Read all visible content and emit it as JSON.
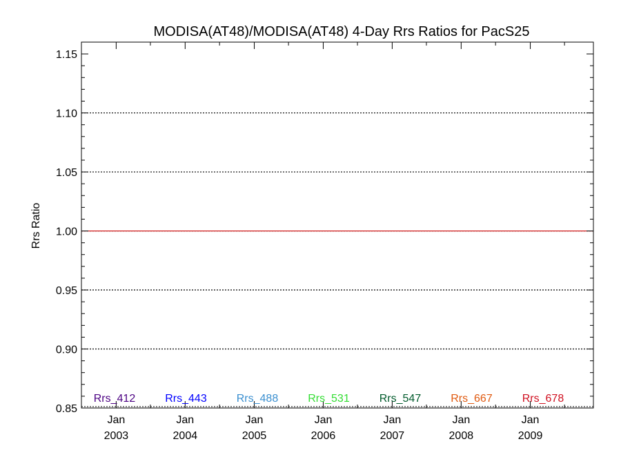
{
  "chart_data": {
    "type": "line",
    "title": "MODISA(AT48)/MODISA(AT48) 4-Day Rrs Ratios for PacS25",
    "xlabel": "",
    "ylabel": "Rrs Ratio",
    "xlim": [
      "2002-07-01",
      "2009-12-01"
    ],
    "ylim": [
      0.85,
      1.16
    ],
    "y_ticks": [
      "0.85",
      "0.90",
      "0.95",
      "1.00",
      "1.05",
      "1.10",
      "1.15"
    ],
    "x_ticks": [
      {
        "date": "2003-01-01",
        "month": "Jan",
        "year": "2003"
      },
      {
        "date": "2004-01-01",
        "month": "Jan",
        "year": "2004"
      },
      {
        "date": "2005-01-01",
        "month": "Jan",
        "year": "2005"
      },
      {
        "date": "2006-01-01",
        "month": "Jan",
        "year": "2006"
      },
      {
        "date": "2007-01-01",
        "month": "Jan",
        "year": "2007"
      },
      {
        "date": "2008-01-01",
        "month": "Jan",
        "year": "2008"
      },
      {
        "date": "2009-01-01",
        "month": "Jan",
        "year": "2009"
      }
    ],
    "gridlines_y": [
      0.9,
      0.95,
      1.05,
      1.1
    ],
    "grid": "horizontal dotted",
    "reference_line": {
      "y": 1.0,
      "color": "#cc0000"
    },
    "series": [
      {
        "name": "Rrs_412",
        "color": "#4b0082",
        "y": 1.0
      },
      {
        "name": "Rrs_443",
        "color": "#0000ff",
        "y": 1.0
      },
      {
        "name": "Rrs_488",
        "color": "#3a8fd0",
        "y": 1.0
      },
      {
        "name": "Rrs_531",
        "color": "#33dd33",
        "y": 1.0
      },
      {
        "name": "Rrs_547",
        "color": "#005a2b",
        "y": 1.0
      },
      {
        "name": "Rrs_667",
        "color": "#e05a10",
        "y": 1.0
      },
      {
        "name": "Rrs_678",
        "color": "#d01020",
        "y": 1.0
      }
    ],
    "legend_placement": "bottom"
  }
}
